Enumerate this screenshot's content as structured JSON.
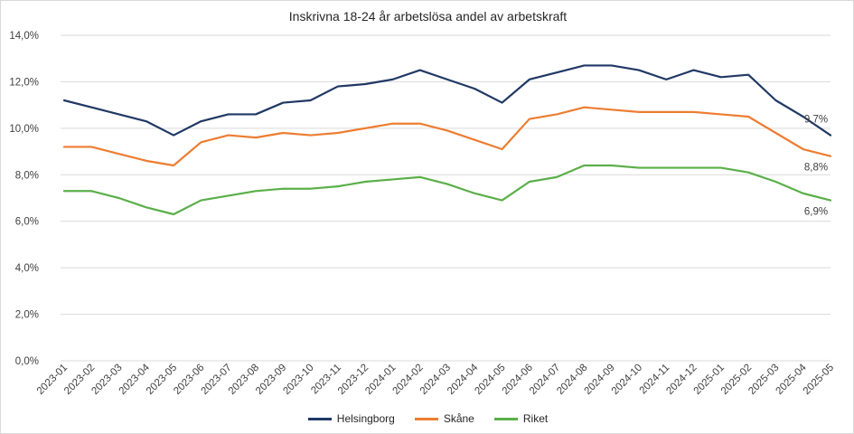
{
  "chart_data": {
    "type": "line",
    "title": "Inskrivna 18-24 år arbetslösa andel av arbetskraft",
    "xlabel": "",
    "ylabel": "",
    "ylim": [
      0,
      14
    ],
    "y_ticks": [
      "0,0%",
      "2,0%",
      "4,0%",
      "6,0%",
      "8,0%",
      "10,0%",
      "12,0%",
      "14,0%"
    ],
    "y_tick_values": [
      0,
      2,
      4,
      6,
      8,
      10,
      12,
      14
    ],
    "grid": true,
    "legend_position": "bottom",
    "categories": [
      "2023-01",
      "2023-02",
      "2023-03",
      "2023-04",
      "2023-05",
      "2023-06",
      "2023-07",
      "2023-08",
      "2023-09",
      "2023-10",
      "2023-11",
      "2023-12",
      "2024-01",
      "2024-02",
      "2024-03",
      "2024-04",
      "2024-05",
      "2024-06",
      "2024-07",
      "2024-08",
      "2024-09",
      "2024-10",
      "2024-11",
      "2024-12",
      "2025-01",
      "2025-02",
      "2025-03",
      "2025-04",
      "2025-05"
    ],
    "series": [
      {
        "name": "Helsingborg",
        "color": "#203864",
        "values": [
          11.2,
          10.9,
          10.6,
          10.3,
          9.7,
          10.3,
          10.6,
          10.6,
          11.1,
          11.2,
          11.8,
          11.9,
          12.1,
          12.5,
          12.1,
          11.7,
          11.1,
          12.1,
          12.4,
          12.7,
          12.7,
          12.5,
          12.1,
          12.5,
          12.2,
          12.3,
          11.2,
          10.5,
          9.7
        ],
        "end_label": "9,7%"
      },
      {
        "name": "Skåne",
        "color": "#ed7d31",
        "values": [
          9.2,
          9.2,
          8.9,
          8.6,
          8.4,
          9.4,
          9.7,
          9.6,
          9.8,
          9.7,
          9.8,
          10.0,
          10.2,
          10.2,
          9.9,
          9.5,
          9.1,
          10.4,
          10.6,
          10.9,
          10.8,
          10.7,
          10.7,
          10.7,
          10.6,
          10.5,
          9.8,
          9.1,
          8.8
        ],
        "end_label": "8,8%"
      },
      {
        "name": "Riket",
        "color": "#5aaf48",
        "values": [
          7.3,
          7.3,
          7.0,
          6.6,
          6.3,
          6.9,
          7.1,
          7.3,
          7.4,
          7.4,
          7.5,
          7.7,
          7.8,
          7.9,
          7.6,
          7.2,
          6.9,
          7.7,
          7.9,
          8.4,
          8.4,
          8.3,
          8.3,
          8.3,
          8.3,
          8.1,
          7.7,
          7.2,
          6.9
        ],
        "end_label": "6,9%"
      }
    ]
  }
}
